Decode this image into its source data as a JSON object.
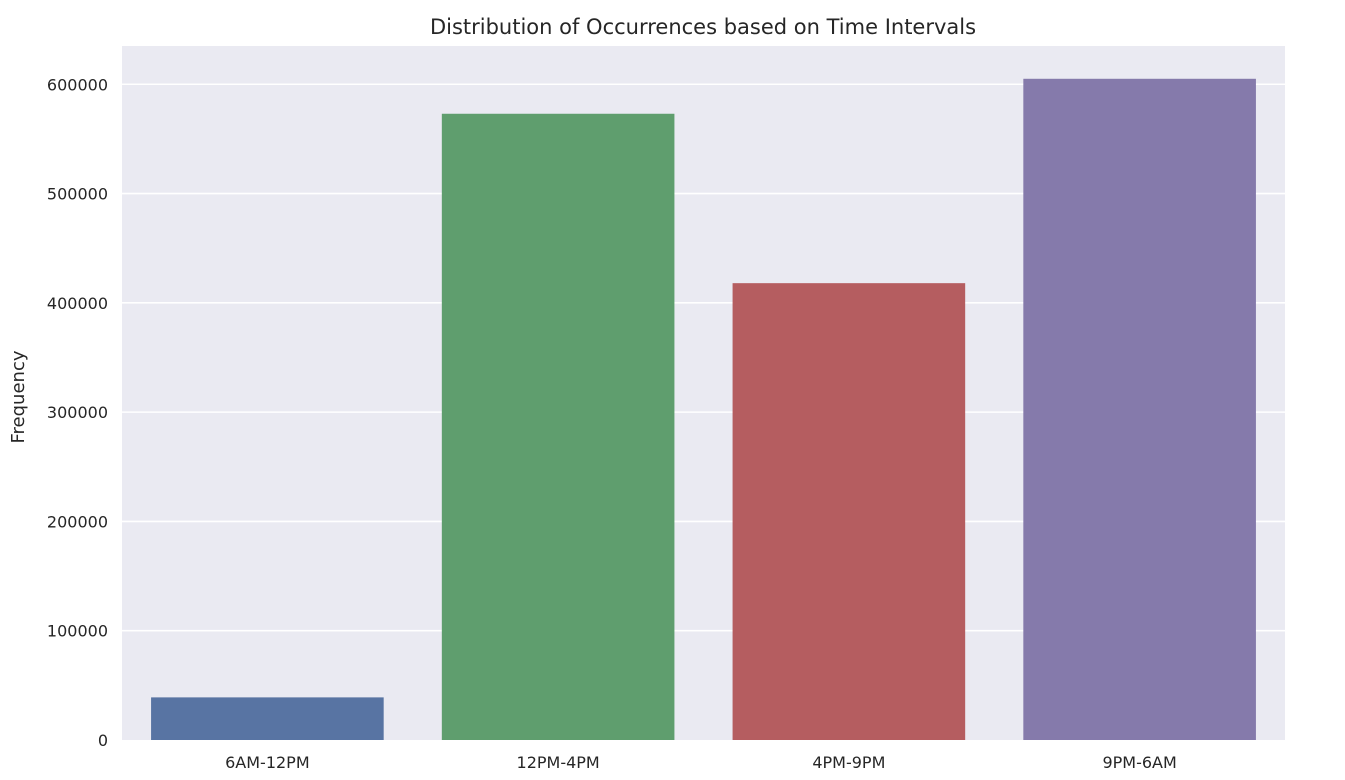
{
  "chart_data": {
    "type": "bar",
    "title": "Distribution of Occurrences based on Time Intervals",
    "xlabel": "",
    "ylabel": "Frequency",
    "categories": [
      "6AM-12PM",
      "12PM-4PM",
      "4PM-9PM",
      "9PM-6AM"
    ],
    "values": [
      39000,
      573000,
      418000,
      605000
    ],
    "colors": [
      "#5874a3",
      "#5f9e6e",
      "#b55d60",
      "#857aab"
    ],
    "ylim": [
      0,
      635000
    ],
    "yticks": [
      0,
      100000,
      200000,
      300000,
      400000,
      500000,
      600000
    ],
    "ytick_labels": [
      "0",
      "100000",
      "200000",
      "300000",
      "400000",
      "500000",
      "600000"
    ],
    "grid": true,
    "background": "#eaeaf2"
  }
}
